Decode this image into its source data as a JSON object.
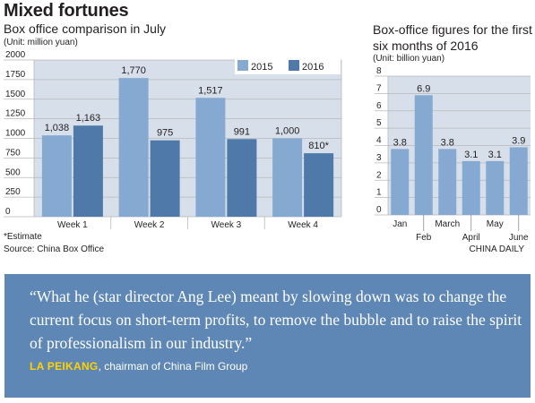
{
  "header": {
    "title": "Mixed fortunes"
  },
  "chart_data": [
    {
      "type": "bar",
      "title": "Box office comparison in July",
      "unit": "(Unit: million yuan)",
      "categories": [
        "Week 1",
        "Week 2",
        "Week 3",
        "Week 4"
      ],
      "series": [
        {
          "name": "2015",
          "values": [
            1038,
            1770,
            1517,
            1000
          ],
          "labels": [
            "1,038",
            "1,770",
            "1,517",
            "1,000"
          ],
          "color": "#86a9d1"
        },
        {
          "name": "2016",
          "values": [
            1163,
            975,
            991,
            810
          ],
          "labels": [
            "1,163",
            "975",
            "991",
            "810*"
          ],
          "color": "#4f79a8"
        }
      ],
      "ylim": [
        0,
        2000
      ],
      "yticks": [
        "0",
        "250",
        "500",
        "750",
        "1000",
        "1250",
        "1500",
        "1750",
        "2000"
      ],
      "grid": true,
      "legend": "top-right",
      "background": "#d6dfea"
    },
    {
      "type": "bar",
      "title": "Box-office figures for the first six months of 2016",
      "unit": "(Unit: billion yuan)",
      "categories": [
        "Jan",
        "Feb",
        "March",
        "April",
        "May",
        "June"
      ],
      "values": [
        3.8,
        6.9,
        3.8,
        3.1,
        3.1,
        3.9
      ],
      "labels": [
        "3.8",
        "6.9",
        "3.8",
        "3.1",
        "3.1",
        "3.9"
      ],
      "ylim": [
        0,
        8
      ],
      "yticks": [
        "0",
        "1",
        "2",
        "3",
        "4",
        "5",
        "6",
        "7",
        "8"
      ],
      "color": "#86a9d1",
      "grid": true,
      "background": "#d6dfea"
    }
  ],
  "footer": {
    "note": "*Estimate",
    "source": "Source: China Box Office",
    "credit": "CHINA DAILY"
  },
  "quote": {
    "text": "“What he (star director Ang Lee) meant by slowing down was to change the current focus on short-term profits, to remove the bubble and to raise the spirit of professionalism in our industry.”",
    "name": "LA PEIKANG",
    "role": ", chairman of China Film Group",
    "background": "#5e87b5",
    "name_color": "#ffd200"
  }
}
